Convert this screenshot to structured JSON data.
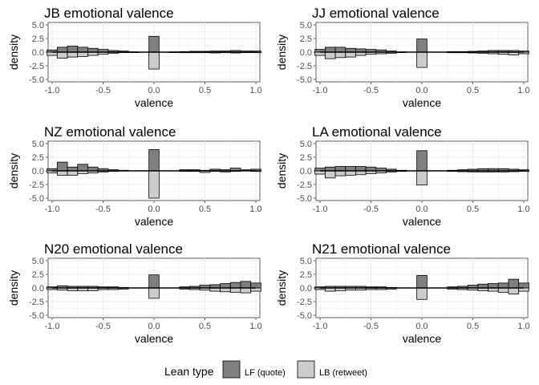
{
  "legend": {
    "title": "Lean type",
    "items": [
      {
        "label": "LF (quote)",
        "color": "#7f7f7f"
      },
      {
        "label": "LB (retweet)",
        "color": "#cccccc"
      }
    ]
  },
  "chart_data": [
    {
      "type": "bar",
      "title": "JB emotional valence",
      "xlabel": "valence",
      "ylabel": "density",
      "xlim": [
        -1.0,
        1.0
      ],
      "ylim": [
        -5.0,
        5.0
      ],
      "xticks": [
        "-1.0",
        "-0.5",
        "0.0",
        "0.5",
        "1.0"
      ],
      "yticks": [
        "5.0",
        "2.5",
        "0.0",
        "-2.5",
        "-5.0"
      ],
      "x": [
        -1.0,
        -0.9,
        -0.8,
        -0.7,
        -0.6,
        -0.5,
        -0.4,
        -0.3,
        -0.2,
        0.0,
        0.2,
        0.3,
        0.4,
        0.5,
        0.6,
        0.7,
        0.8,
        0.9,
        1.0
      ],
      "series": [
        {
          "name": "LF (quote)",
          "values": [
            0.4,
            0.9,
            1.1,
            0.9,
            0.7,
            0.5,
            0.3,
            0.2,
            0.05,
            2.9,
            0.05,
            0.1,
            0.15,
            0.15,
            0.2,
            0.2,
            0.3,
            0.2,
            0.2
          ]
        },
        {
          "name": "LB (retweet)",
          "values": [
            -0.6,
            -1.1,
            -0.9,
            -0.8,
            -0.6,
            -0.4,
            -0.2,
            -0.1,
            -0.05,
            -3.1,
            -0.05,
            -0.1,
            -0.1,
            -0.1,
            -0.15,
            -0.1,
            -0.15,
            -0.1,
            -0.1
          ]
        }
      ],
      "grid": true
    },
    {
      "type": "bar",
      "title": "JJ emotional valence",
      "xlabel": "valence",
      "ylabel": "density",
      "xlim": [
        -1.0,
        1.0
      ],
      "ylim": [
        -5.0,
        5.0
      ],
      "xticks": [
        "-1.0",
        "-0.5",
        "0.0",
        "0.5",
        "1.0"
      ],
      "yticks": [
        "5.0",
        "2.5",
        "0.0",
        "-2.5",
        "-5.0"
      ],
      "x": [
        -1.0,
        -0.9,
        -0.8,
        -0.7,
        -0.6,
        -0.5,
        -0.4,
        -0.3,
        -0.2,
        0.0,
        0.3,
        0.4,
        0.5,
        0.6,
        0.7,
        0.8,
        0.9,
        1.0
      ],
      "series": [
        {
          "name": "LF (quote)",
          "values": [
            0.5,
            0.9,
            0.9,
            0.7,
            0.6,
            0.5,
            0.4,
            0.2,
            0.05,
            2.4,
            0.1,
            0.1,
            0.15,
            0.2,
            0.3,
            0.3,
            0.3,
            0.2
          ]
        },
        {
          "name": "LB (retweet)",
          "values": [
            -0.6,
            -1.2,
            -1.0,
            -0.9,
            -0.6,
            -0.4,
            -0.3,
            -0.2,
            -0.05,
            -2.8,
            -0.1,
            -0.1,
            -0.15,
            -0.2,
            -0.3,
            -0.4,
            -0.5,
            -0.3
          ]
        }
      ],
      "grid": true
    },
    {
      "type": "bar",
      "title": "NZ emotional valence",
      "xlabel": "valence",
      "ylabel": "density",
      "xlim": [
        -1.0,
        1.0
      ],
      "ylim": [
        -5.0,
        5.0
      ],
      "xticks": [
        "-1.0",
        "-0.5",
        "0.0",
        "0.5",
        "1.0"
      ],
      "yticks": [
        "5.0",
        "2.5",
        "0.0",
        "-2.5",
        "-5.0"
      ],
      "x": [
        -1.0,
        -0.9,
        -0.8,
        -0.7,
        -0.6,
        -0.5,
        -0.4,
        -0.3,
        0.0,
        0.3,
        0.4,
        0.5,
        0.6,
        0.7,
        0.8,
        0.9,
        1.0
      ],
      "series": [
        {
          "name": "LF (quote)",
          "values": [
            0.4,
            1.6,
            0.7,
            1.2,
            0.7,
            0.4,
            0.2,
            0.1,
            3.9,
            0.2,
            0.2,
            0.1,
            0.3,
            0.2,
            0.5,
            0.2,
            0.3
          ]
        },
        {
          "name": "LB (retweet)",
          "values": [
            -0.4,
            -0.8,
            -0.8,
            -0.5,
            -0.4,
            -0.2,
            -0.1,
            0,
            -5.0,
            -0.1,
            -0.1,
            -0.3,
            -0.1,
            -0.2,
            -0.1,
            0,
            -0.1
          ]
        }
      ],
      "grid": true
    },
    {
      "type": "bar",
      "title": "LA emotional valence",
      "xlabel": "valence",
      "ylabel": "density",
      "xlim": [
        -1.0,
        1.0
      ],
      "ylim": [
        -5.0,
        5.0
      ],
      "xticks": [
        "-1.0",
        "-0.5",
        "0.0",
        "0.5",
        "1.0"
      ],
      "yticks": [
        "5.0",
        "2.5",
        "0.0",
        "-2.5",
        "-5.0"
      ],
      "x": [
        -1.0,
        -0.9,
        -0.8,
        -0.7,
        -0.6,
        -0.5,
        -0.4,
        -0.3,
        -0.2,
        0.0,
        0.3,
        0.4,
        0.5,
        0.6,
        0.7,
        0.8,
        0.9,
        1.0
      ],
      "series": [
        {
          "name": "LF (quote)",
          "values": [
            0.5,
            0.7,
            0.8,
            0.8,
            0.8,
            0.7,
            0.5,
            0.3,
            0.1,
            3.7,
            0.1,
            0.2,
            0.3,
            0.4,
            0.4,
            0.4,
            0.3,
            0.2
          ]
        },
        {
          "name": "LB (retweet)",
          "values": [
            -0.6,
            -1.3,
            -0.9,
            -0.8,
            -0.7,
            -0.5,
            -0.4,
            -0.2,
            -0.1,
            -2.6,
            -0.1,
            -0.15,
            -0.2,
            -0.2,
            -0.2,
            -0.2,
            -0.15,
            -0.1
          ]
        }
      ],
      "grid": true
    },
    {
      "type": "bar",
      "title": "N20 emotional valence",
      "xlabel": "valence",
      "ylabel": "density",
      "xlim": [
        -1.0,
        1.0
      ],
      "ylim": [
        -5.0,
        5.0
      ],
      "xticks": [
        "-1.0",
        "-0.5",
        "0.0",
        "0.5",
        "1.0"
      ],
      "yticks": [
        "5.0",
        "2.5",
        "0.0",
        "-2.5",
        "-5.0"
      ],
      "x": [
        -1.0,
        -0.9,
        -0.8,
        -0.7,
        -0.6,
        -0.5,
        -0.4,
        -0.3,
        0.0,
        0.3,
        0.4,
        0.5,
        0.6,
        0.7,
        0.8,
        0.9,
        1.0
      ],
      "series": [
        {
          "name": "LF (quote)",
          "values": [
            0.2,
            0.4,
            0.3,
            0.3,
            0.3,
            0.2,
            0.2,
            0.1,
            2.4,
            0.2,
            0.3,
            0.5,
            0.6,
            0.8,
            1.0,
            1.2,
            0.9
          ]
        },
        {
          "name": "LB (retweet)",
          "values": [
            -0.3,
            -0.4,
            -0.5,
            -0.5,
            -0.5,
            -0.3,
            -0.3,
            -0.2,
            -1.9,
            -0.2,
            -0.3,
            -0.4,
            -0.6,
            -0.7,
            -0.8,
            -0.9,
            -0.6
          ]
        }
      ],
      "grid": true
    },
    {
      "type": "bar",
      "title": "N21 emotional valence",
      "xlabel": "valence",
      "ylabel": "density",
      "xlim": [
        -1.0,
        1.0
      ],
      "ylim": [
        -5.0,
        5.0
      ],
      "xticks": [
        "-1.0",
        "-0.5",
        "0.0",
        "0.5",
        "1.0"
      ],
      "yticks": [
        "5.0",
        "2.5",
        "0.0",
        "-2.5",
        "-5.0"
      ],
      "x": [
        -1.0,
        -0.9,
        -0.8,
        -0.7,
        -0.6,
        -0.5,
        -0.4,
        -0.3,
        0.0,
        0.3,
        0.4,
        0.5,
        0.6,
        0.7,
        0.8,
        0.9,
        1.0
      ],
      "series": [
        {
          "name": "LF (quote)",
          "values": [
            0.2,
            0.3,
            0.3,
            0.3,
            0.3,
            0.2,
            0.2,
            0.1,
            2.3,
            0.2,
            0.3,
            0.5,
            0.7,
            0.8,
            0.9,
            1.6,
            0.9
          ]
        },
        {
          "name": "LB (retweet)",
          "values": [
            -0.3,
            -0.6,
            -0.5,
            -0.4,
            -0.4,
            -0.3,
            -0.3,
            -0.2,
            -2.1,
            -0.2,
            -0.3,
            -0.4,
            -0.5,
            -0.6,
            -0.8,
            -1.1,
            -0.6
          ]
        }
      ],
      "grid": true
    }
  ]
}
